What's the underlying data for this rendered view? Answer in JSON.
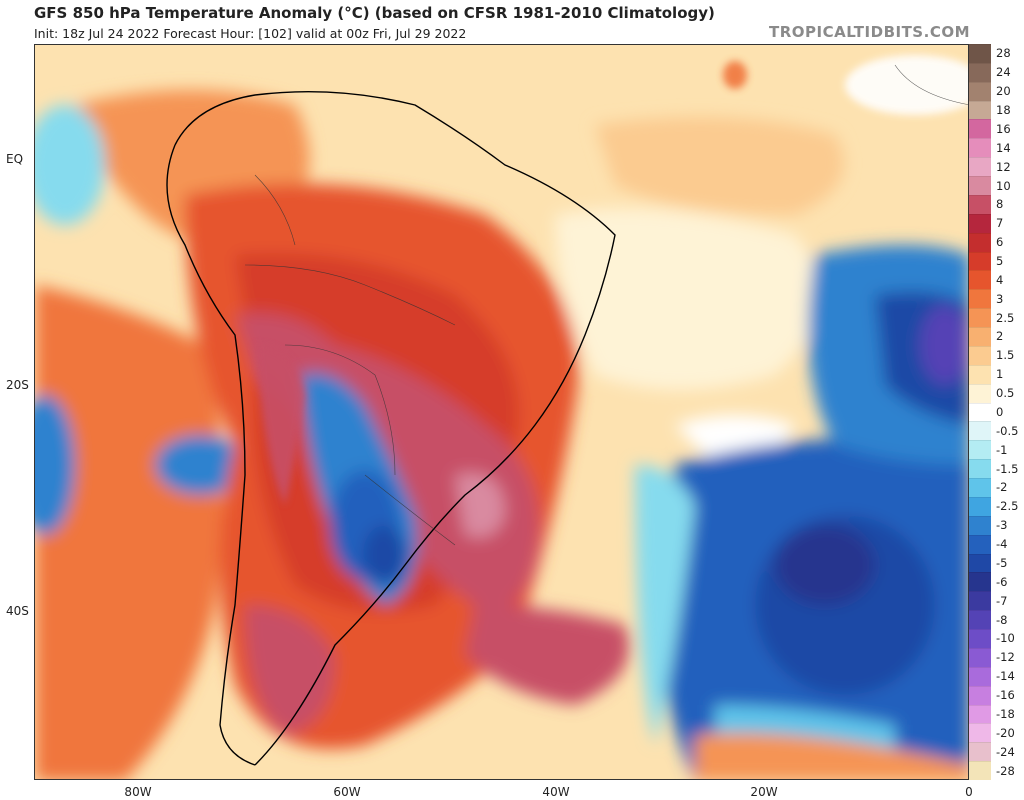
{
  "header": {
    "title": "GFS 850 hPa Temperature Anomaly (°C) (based on CFSR 1981-2010 Climatology)",
    "subtitle": "Init: 18z Jul 24 2022   Forecast Hour: [102]   valid at 00z Fri, Jul 29 2022",
    "brand": "TROPICALTIDBITS.COM"
  },
  "axes": {
    "lat_labels": [
      "EQ",
      "20S",
      "40S"
    ],
    "lon_labels": [
      "80W",
      "60W",
      "40W",
      "20W",
      "0"
    ]
  },
  "colorbar": {
    "entries": [
      {
        "label": "28",
        "color": "#6f5548"
      },
      {
        "label": "24",
        "color": "#87695a"
      },
      {
        "label": "20",
        "color": "#a2826f"
      },
      {
        "label": "18",
        "color": "#c6a995"
      },
      {
        "label": "16",
        "color": "#d3679f"
      },
      {
        "label": "14",
        "color": "#e58dbb"
      },
      {
        "label": "12",
        "color": "#e8a7c4"
      },
      {
        "label": "10",
        "color": "#d98aa0"
      },
      {
        "label": "8",
        "color": "#c75066"
      },
      {
        "label": "7",
        "color": "#b5263d"
      },
      {
        "label": "6",
        "color": "#c42e2e"
      },
      {
        "label": "5",
        "color": "#d63c2a"
      },
      {
        "label": "4",
        "color": "#e6552d"
      },
      {
        "label": "3",
        "color": "#f0763d"
      },
      {
        "label": "2.5",
        "color": "#f59455"
      },
      {
        "label": "2",
        "color": "#f8b070"
      },
      {
        "label": "1.5",
        "color": "#fbcb90"
      },
      {
        "label": "1",
        "color": "#fde2b0"
      },
      {
        "label": "0.5",
        "color": "#fef3d6"
      },
      {
        "label": "0",
        "color": "#ffffff"
      },
      {
        "label": "-0.5",
        "color": "#dff5f8"
      },
      {
        "label": "-1",
        "color": "#b4ecf3"
      },
      {
        "label": "-1.5",
        "color": "#86dbee"
      },
      {
        "label": "-2",
        "color": "#5fc4ea"
      },
      {
        "label": "-2.5",
        "color": "#3fa5e1"
      },
      {
        "label": "-3",
        "color": "#2f82cf"
      },
      {
        "label": "-4",
        "color": "#2461bd"
      },
      {
        "label": "-5",
        "color": "#1f48a6"
      },
      {
        "label": "-6",
        "color": "#26358e"
      },
      {
        "label": "-7",
        "color": "#3b3aa0"
      },
      {
        "label": "-8",
        "color": "#5443b5"
      },
      {
        "label": "-10",
        "color": "#6d4dc7"
      },
      {
        "label": "-12",
        "color": "#8a5ad3"
      },
      {
        "label": "-14",
        "color": "#a96bdc"
      },
      {
        "label": "-16",
        "color": "#c77fe0"
      },
      {
        "label": "-18",
        "color": "#e09ae5"
      },
      {
        "label": "-20",
        "color": "#efb8e8"
      },
      {
        "label": "-24",
        "color": "#e8c0cc"
      },
      {
        "label": "-28",
        "color": "#f3e4b8"
      }
    ]
  }
}
